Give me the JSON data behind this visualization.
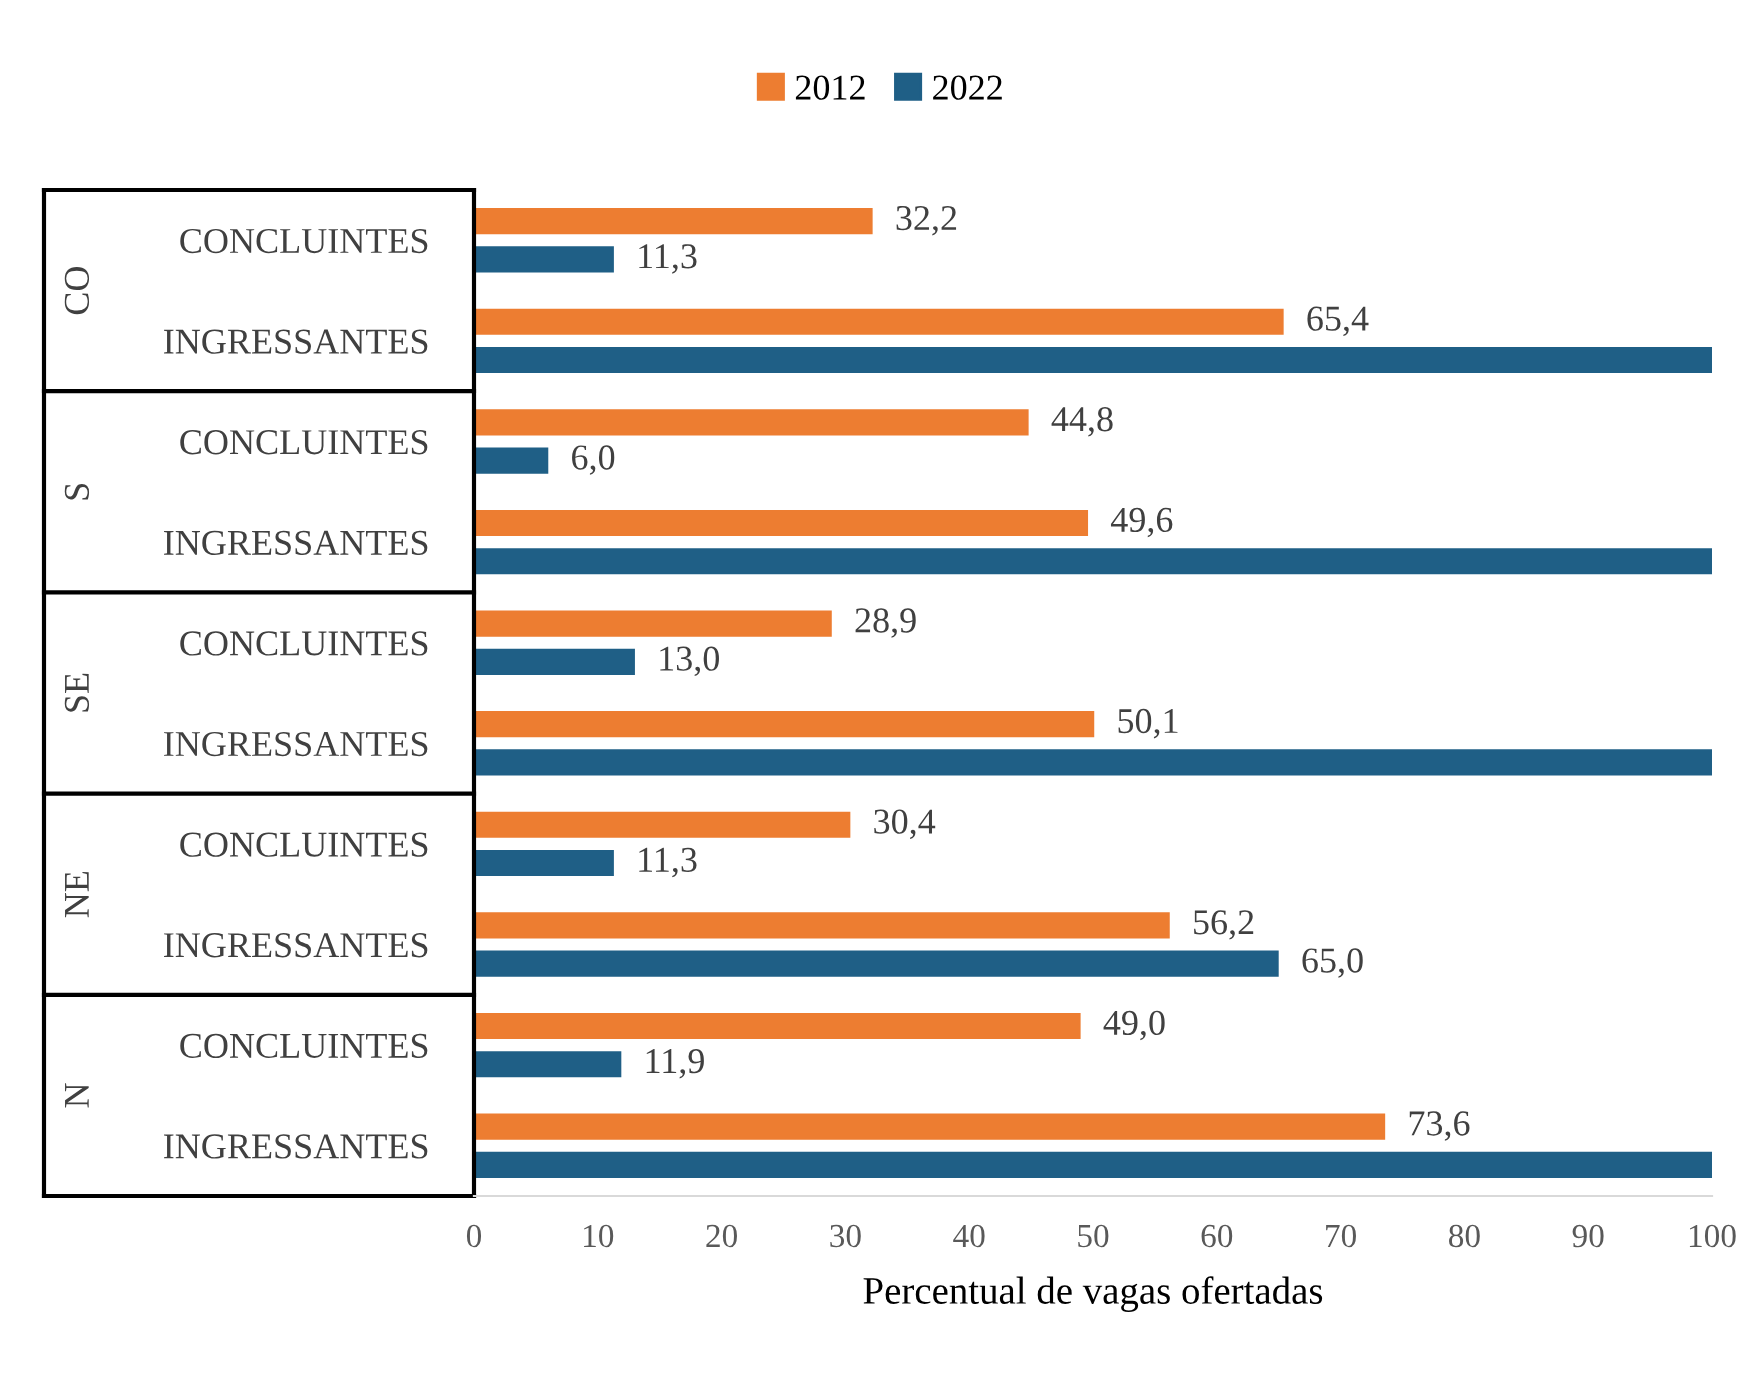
{
  "chart_data": {
    "type": "bar",
    "orientation": "horizontal",
    "xlabel": "Percentual de vagas ofertadas",
    "categories": [
      "CONCLUINTES",
      "INGRESSANTES",
      "CONCLUINTES",
      "INGRESSANTES",
      "CONCLUINTES",
      "INGRESSANTES",
      "CONCLUINTES",
      "INGRESSANTES",
      "CONCLUINTES",
      "INGRESSANTES"
    ],
    "annotations": [
      "CO",
      "S",
      "SE",
      "NE",
      "N"
    ],
    "series": [
      {
        "name": "2012",
        "color": "#ed7d31",
        "values": [
          32.2,
          65.4,
          44.8,
          49.6,
          28.9,
          50.1,
          30.4,
          56.2,
          49.0,
          73.6
        ],
        "value_labels": [
          "32,2",
          "65,4",
          "44,8",
          "49,6",
          "28,9",
          "50,1",
          "30,4",
          "56,2",
          "49,0",
          "73,6"
        ]
      },
      {
        "name": "2022",
        "color": "#1f5f86",
        "values": [
          11.3,
          100,
          6.0,
          100,
          13.0,
          100,
          11.3,
          65.0,
          11.9,
          100
        ],
        "value_labels": [
          "11,3",
          null,
          "6,0",
          null,
          "13,0",
          null,
          "11,3",
          "65,0",
          "11,9",
          null
        ]
      }
    ],
    "xlim": [
      0,
      100
    ],
    "xticks": [
      0,
      10,
      20,
      30,
      40,
      50,
      60,
      70,
      80,
      90,
      100
    ],
    "grid": false,
    "legend": "top"
  }
}
